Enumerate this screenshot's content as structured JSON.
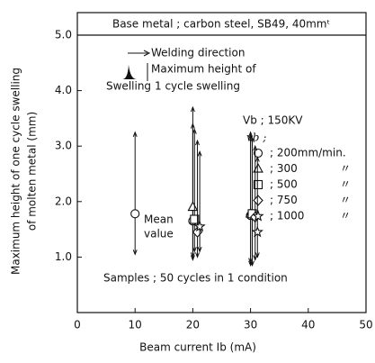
{
  "chart_data": {
    "type": "range-scatter",
    "title": "Base metal ; carbon steel, SB49, 40mmᵗ",
    "x_label": "Beam current  Ib  (mA)",
    "y_label": [
      "Maximum height of one cycle swelling",
      "of molten metal  (mm)"
    ],
    "xlim": [
      0,
      50
    ],
    "xticks": [
      0,
      10,
      20,
      30,
      40,
      50
    ],
    "ylim": [
      0,
      5
    ],
    "yticks": [
      {
        "value": 1,
        "label": "1.0"
      },
      {
        "value": 2,
        "label": "2.0"
      },
      {
        "value": 3,
        "label": "3.0"
      },
      {
        "value": 4,
        "label": "4.0"
      },
      {
        "value": 5,
        "label": "5.0"
      }
    ],
    "annotations": {
      "direction": "Welding direction",
      "swelling": "Swelling",
      "max_height": [
        "Maximum height of",
        "1 cycle swelling"
      ],
      "voltage": "Vb ; 150KV",
      "speed_label": "vb ;",
      "mean": [
        "Mean",
        "value"
      ],
      "samples": "Samples ; 50 cycles in 1 condition",
      "ditto": "〃"
    },
    "series": [
      {
        "name": "200mm/min.",
        "marker": "circle",
        "x": [
          10,
          20,
          30
        ],
        "values": [
          1.78,
          1.65,
          1.75
        ],
        "low": [
          1.05,
          0.95,
          0.9
        ],
        "high": [
          3.25,
          3.7,
          3.25
        ]
      },
      {
        "name": "300",
        "marker": "triangle",
        "x": [
          20,
          30
        ],
        "values": [
          1.9,
          1.78
        ],
        "low": [
          1.0,
          0.85
        ],
        "high": [
          3.4,
          3.2
        ]
      },
      {
        "name": "500",
        "marker": "square",
        "x": [
          20.3,
          30.3
        ],
        "values": [
          1.68,
          1.78
        ],
        "low": [
          1.1,
          0.85
        ],
        "high": [
          3.3,
          3.15
        ]
      },
      {
        "name": "750",
        "marker": "diamond",
        "x": [
          20.8,
          30.8
        ],
        "values": [
          1.45,
          1.72
        ],
        "low": [
          1.0,
          0.95
        ],
        "high": [
          3.1,
          3.0
        ]
      },
      {
        "name": "1000",
        "marker": "star",
        "x": [
          21.2,
          31.2
        ],
        "values": [
          1.55,
          1.45
        ],
        "low": [
          1.1,
          1.0
        ],
        "high": [
          2.9,
          2.8
        ]
      }
    ]
  }
}
